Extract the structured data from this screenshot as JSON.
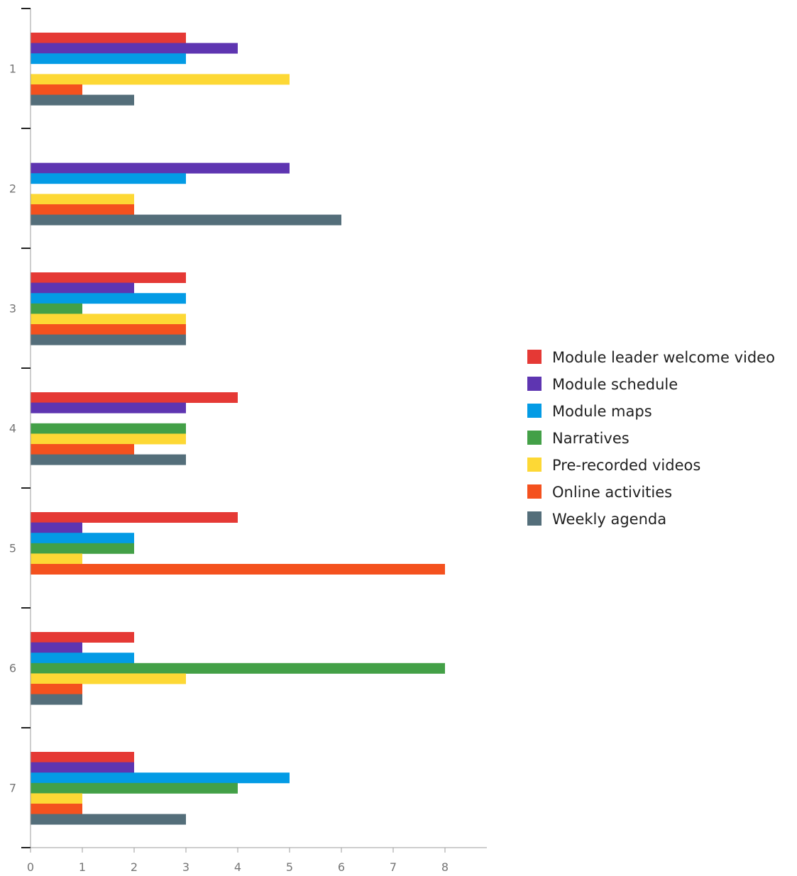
{
  "chart_data": {
    "type": "bar",
    "orientation": "horizontal",
    "categories": [
      "1",
      "2",
      "3",
      "4",
      "5",
      "6",
      "7"
    ],
    "series": [
      {
        "name": "Module leader welcome video",
        "color": "#e53935",
        "values": [
          3,
          0,
          3,
          4,
          4,
          2,
          2
        ]
      },
      {
        "name": "Module schedule",
        "color": "#5e35b1",
        "values": [
          4,
          5,
          2,
          3,
          1,
          1,
          2
        ]
      },
      {
        "name": "Module maps",
        "color": "#039be5",
        "values": [
          3,
          3,
          3,
          0,
          2,
          2,
          5
        ]
      },
      {
        "name": "Narratives",
        "color": "#43a047",
        "values": [
          0,
          0,
          1,
          3,
          2,
          8,
          4
        ]
      },
      {
        "name": "Pre-recorded videos",
        "color": "#fdd835",
        "values": [
          5,
          2,
          3,
          3,
          1,
          3,
          1
        ]
      },
      {
        "name": "Online activities",
        "color": "#f4511e",
        "values": [
          1,
          2,
          3,
          2,
          8,
          1,
          1
        ]
      },
      {
        "name": "Weekly agenda",
        "color": "#546e7a",
        "values": [
          2,
          6,
          3,
          3,
          0,
          1,
          3
        ]
      }
    ],
    "x_ticks": [
      "0",
      "1",
      "2",
      "3",
      "4",
      "5",
      "6",
      "7",
      "8"
    ],
    "xlim": [
      0,
      8.8
    ],
    "grid": false,
    "legend_position": "right"
  }
}
